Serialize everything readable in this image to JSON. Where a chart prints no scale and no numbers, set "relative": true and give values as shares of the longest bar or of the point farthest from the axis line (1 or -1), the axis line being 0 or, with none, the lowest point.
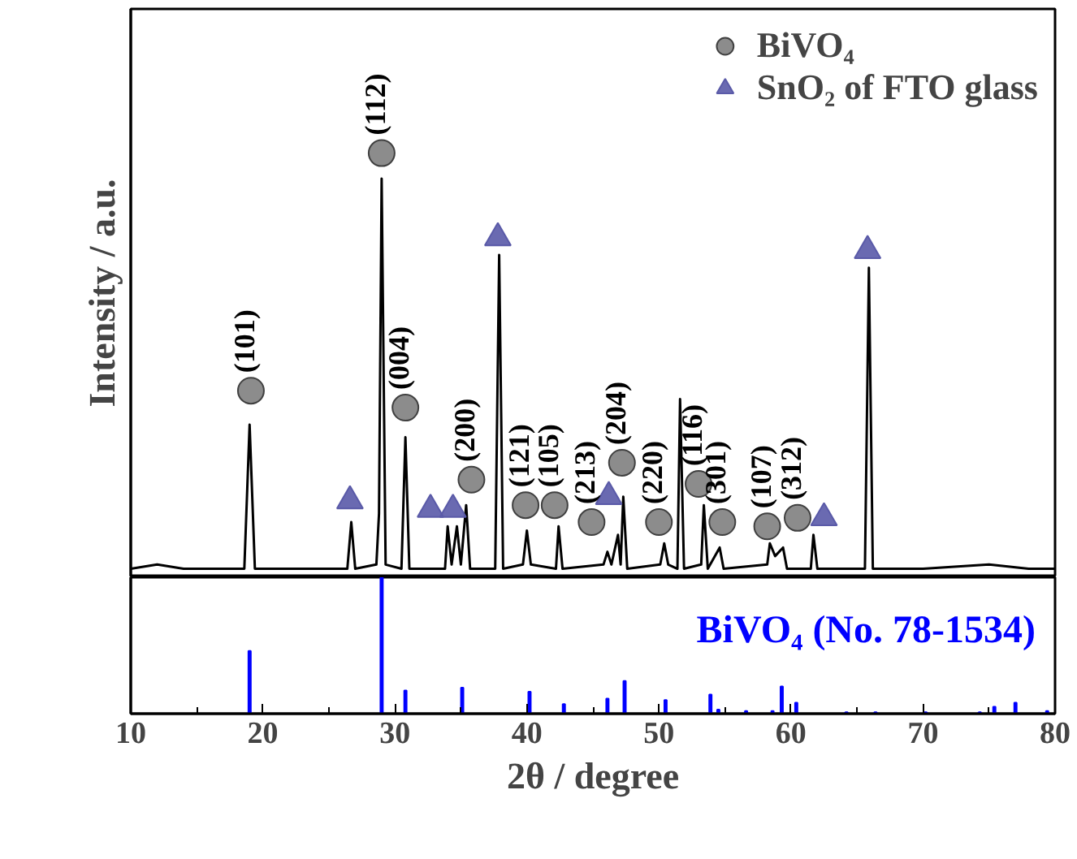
{
  "chart_data": [
    {
      "type": "line",
      "ylabel": "Intensity / a.u.",
      "relative": true,
      "xlim": [
        10,
        80
      ],
      "tick_labels": false,
      "legend": "top right",
      "series": [
        {
          "type": "line",
          "color": "#000000",
          "x": [
            10,
            12,
            14,
            16,
            18.6,
            19.0,
            19.4,
            22,
            24,
            26.4,
            26.7,
            27.0,
            28.6,
            28.8,
            29.0,
            29.3,
            30.5,
            30.8,
            31.1,
            33.8,
            34.0,
            34.3,
            34.7,
            35.0,
            35.4,
            35.7,
            37.6,
            37.9,
            38.2,
            39.7,
            40.0,
            40.3,
            42.2,
            42.4,
            42.7,
            45.8,
            46.1,
            46.4,
            46.9,
            47.1,
            47.3,
            47.6,
            50.1,
            50.4,
            50.7,
            51.4,
            51.6,
            51.9,
            53.2,
            53.4,
            53.7,
            54.6,
            54.9,
            58.2,
            58.4,
            58.8,
            59.4,
            59.7,
            61.5,
            61.7,
            62.0,
            65.6,
            65.9,
            66.2,
            70,
            75,
            78,
            80
          ],
          "values": [
            0.02,
            0.03,
            0.02,
            0.02,
            0.02,
            0.36,
            0.02,
            0.02,
            0.02,
            0.02,
            0.13,
            0.02,
            0.03,
            0.15,
            0.94,
            0.03,
            0.02,
            0.33,
            0.02,
            0.02,
            0.12,
            0.03,
            0.12,
            0.03,
            0.17,
            0.02,
            0.02,
            0.76,
            0.02,
            0.03,
            0.11,
            0.03,
            0.02,
            0.12,
            0.02,
            0.03,
            0.06,
            0.03,
            0.1,
            0.03,
            0.19,
            0.02,
            0.03,
            0.08,
            0.03,
            0.02,
            0.42,
            0.02,
            0.03,
            0.17,
            0.02,
            0.07,
            0.02,
            0.03,
            0.08,
            0.05,
            0.07,
            0.02,
            0.02,
            0.1,
            0.02,
            0.02,
            0.73,
            0.02,
            0.02,
            0.03,
            0.02,
            0.02
          ]
        },
        {
          "type": "scatter",
          "name": "BiVO₄",
          "marker": "circle",
          "color": "#808080",
          "x": [
            19.1,
            29.0,
            30.8,
            35.8,
            39.9,
            42.1,
            44.9,
            47.2,
            50.0,
            53.0,
            54.8,
            58.2,
            60.5
          ],
          "values": [
            0.44,
            1.0,
            0.4,
            0.23,
            0.17,
            0.17,
            0.13,
            0.27,
            0.13,
            0.22,
            0.13,
            0.12,
            0.14
          ]
        },
        {
          "type": "scatter",
          "name": "SnO₂ of FTO glass",
          "marker": "triangle",
          "color": "#5a5aa8",
          "x": [
            26.6,
            32.7,
            34.4,
            37.8,
            46.2,
            62.5,
            65.8
          ],
          "values": [
            0.18,
            0.16,
            0.16,
            0.8,
            0.19,
            0.14,
            0.77
          ]
        }
      ],
      "annotations": [
        {
          "text": "(101)",
          "x": 19.1,
          "y": 0.44
        },
        {
          "text": "(112)",
          "x": 29.0,
          "y": 1.0
        },
        {
          "text": "(004)",
          "x": 30.8,
          "y": 0.4
        },
        {
          "text": "(200)",
          "x": 35.8,
          "y": 0.23
        },
        {
          "text": "(121)",
          "x": 39.9,
          "y": 0.17
        },
        {
          "text": "(105)",
          "x": 42.1,
          "y": 0.17
        },
        {
          "text": "(213)",
          "x": 44.9,
          "y": 0.13
        },
        {
          "text": "(204)",
          "x": 47.2,
          "y": 0.27
        },
        {
          "text": "(220)",
          "x": 50.0,
          "y": 0.13
        },
        {
          "text": "(116)",
          "x": 53.0,
          "y": 0.22
        },
        {
          "text": "(301)",
          "x": 54.8,
          "y": 0.13
        },
        {
          "text": "(107)",
          "x": 58.2,
          "y": 0.12
        },
        {
          "text": "(312)",
          "x": 60.5,
          "y": 0.14
        }
      ]
    },
    {
      "type": "bar",
      "xlabel": "2θ / degree",
      "relative": true,
      "xlim": [
        10,
        80
      ],
      "xticks": [
        10,
        20,
        30,
        40,
        50,
        60,
        70,
        80
      ],
      "tick_labels": "x",
      "series": [
        {
          "name": "BiVO₄ (No. 78-1534)",
          "color": "#0000ff",
          "x": [
            19.0,
            28.9,
            29.0,
            30.8,
            35.1,
            40.2,
            42.8,
            46.1,
            47.4,
            50.5,
            53.9,
            54.5,
            56.6,
            58.6,
            59.3,
            60.4,
            64.2,
            66.4,
            70.2,
            74.3,
            75.4,
            77.0,
            79.4
          ],
          "values": [
            0.46,
            null,
            1.0,
            0.17,
            0.19,
            0.16,
            0.07,
            0.11,
            0.24,
            0.1,
            0.14,
            0.03,
            0.02,
            0.02,
            0.2,
            0.08,
            0.01,
            0.01,
            0.01,
            0.01,
            0.05,
            0.08,
            0.02
          ]
        }
      ]
    }
  ]
}
